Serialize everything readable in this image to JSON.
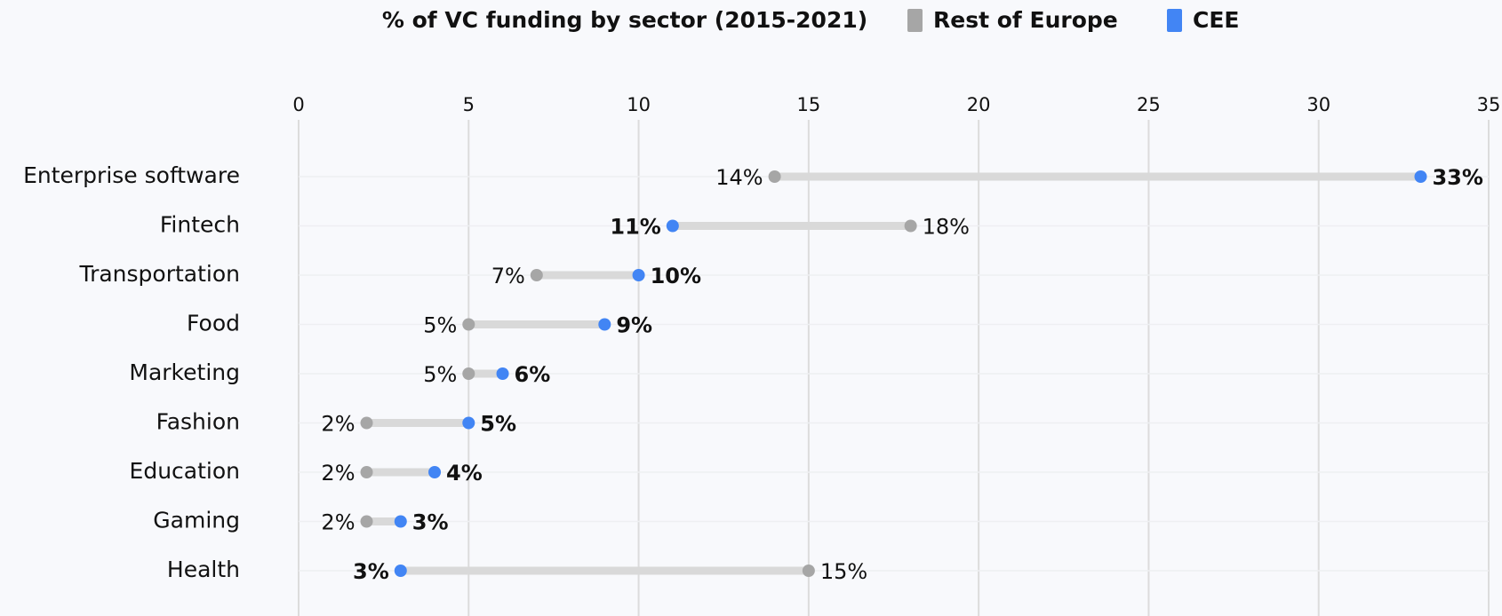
{
  "chart_data": {
    "type": "dumbbell",
    "title": "% of VC funding by sector (2015-2021)",
    "categories": [
      "Enterprise software",
      "Fintech",
      "Transportation",
      "Food",
      "Marketing",
      "Fashion",
      "Education",
      "Gaming",
      "Health"
    ],
    "series": [
      {
        "name": "Rest of Europe",
        "color": "#a6a6a6",
        "values": [
          14,
          18,
          7,
          5,
          5,
          2,
          2,
          2,
          15
        ],
        "value_labels": [
          "14%",
          "18%",
          "7%",
          "5%",
          "5%",
          "2%",
          "2%",
          "2%",
          "15%"
        ]
      },
      {
        "name": "CEE",
        "color": "#4285f4",
        "values": [
          33,
          11,
          10,
          9,
          6,
          5,
          4,
          3,
          3
        ],
        "value_labels": [
          "33%",
          "11%",
          "10%",
          "9%",
          "6%",
          "5%",
          "4%",
          "3%",
          "3%"
        ]
      }
    ],
    "xlim": [
      0,
      35
    ],
    "xticks": [
      0,
      5,
      10,
      15,
      20,
      25,
      30,
      35
    ],
    "grid": true
  }
}
